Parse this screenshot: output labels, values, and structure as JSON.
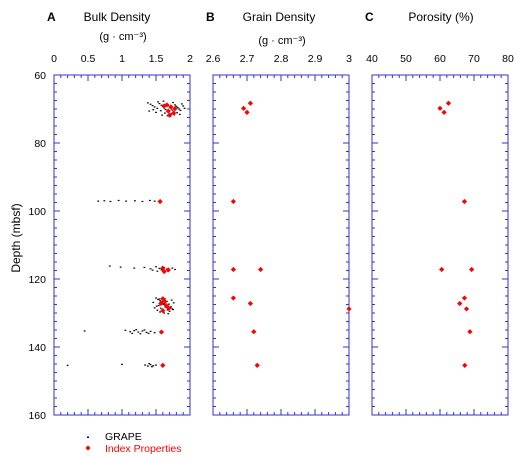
{
  "colors": {
    "axis": "#3333cc",
    "grape": "#000000",
    "index": "#ff0000",
    "text": "#000000"
  },
  "panels": [
    {
      "letter": "A",
      "title": "Bulk Density",
      "unit": "(g · cm⁻³)"
    },
    {
      "letter": "B",
      "title": "Grain Density",
      "unit": "(g · cm⁻³)"
    },
    {
      "letter": "C",
      "title": "Porosity (%)",
      "unit": ""
    }
  ],
  "legend": [
    {
      "label": "GRAPE",
      "color": "#000000",
      "marker": "dot"
    },
    {
      "label": "Index Properties",
      "color": "#ff0000",
      "marker": "diamond"
    }
  ],
  "chart_data": [
    {
      "type": "scatter",
      "title": "Bulk Density",
      "xlabel": "(g · cm⁻³)",
      "ylabel": "Depth (mbsf)",
      "xlim": [
        0,
        2
      ],
      "ylim": [
        60,
        160
      ],
      "y_inverted": true,
      "x_ticks": [
        "0",
        "0.5",
        "1",
        "1.5",
        "2"
      ],
      "x_tick_values": [
        0,
        0.5,
        1,
        1.5,
        2
      ],
      "y_ticks": [
        "60",
        "80",
        "100",
        "120",
        "140",
        "160"
      ],
      "y_tick_values": [
        60,
        80,
        100,
        120,
        140,
        160
      ],
      "series": [
        {
          "name": "GRAPE",
          "points": [
            [
              1.38,
              68.2
            ],
            [
              1.42,
              68.6
            ],
            [
              1.45,
              69.0
            ],
            [
              1.48,
              69.4
            ],
            [
              1.52,
              69.8
            ],
            [
              1.55,
              68.4
            ],
            [
              1.58,
              68.9
            ],
            [
              1.6,
              69.3
            ],
            [
              1.62,
              69.7
            ],
            [
              1.64,
              70.1
            ],
            [
              1.66,
              68.6
            ],
            [
              1.68,
              69.0
            ],
            [
              1.7,
              69.5
            ],
            [
              1.72,
              69.9
            ],
            [
              1.74,
              70.3
            ],
            [
              1.76,
              70.7
            ],
            [
              1.78,
              68.8
            ],
            [
              1.8,
              69.2
            ],
            [
              1.82,
              69.6
            ],
            [
              1.84,
              70.0
            ],
            [
              1.86,
              70.4
            ],
            [
              1.88,
              68.5
            ],
            [
              1.9,
              69.1
            ],
            [
              1.92,
              69.8
            ],
            [
              1.4,
              70.6
            ],
            [
              1.46,
              70.2
            ],
            [
              1.5,
              71.0
            ],
            [
              1.57,
              70.5
            ],
            [
              1.63,
              71.2
            ],
            [
              1.69,
              70.8
            ],
            [
              1.73,
              71.4
            ],
            [
              1.77,
              71.7
            ],
            [
              1.81,
              71.1
            ],
            [
              1.85,
              71.6
            ],
            [
              1.59,
              71.8
            ],
            [
              1.67,
              72.0
            ],
            [
              1.71,
              72.2
            ],
            [
              1.53,
              67.9
            ],
            [
              1.61,
              67.7
            ],
            [
              1.75,
              68.1
            ],
            [
              0.65,
              97.1
            ],
            [
              0.74,
              97.0
            ],
            [
              0.83,
              97.2
            ],
            [
              0.95,
              96.9
            ],
            [
              1.06,
              97.1
            ],
            [
              1.19,
              97.0
            ],
            [
              1.3,
              97.2
            ],
            [
              1.41,
              96.9
            ],
            [
              1.48,
              97.1
            ],
            [
              0.82,
              116.2
            ],
            [
              0.98,
              116.5
            ],
            [
              1.18,
              116.8
            ],
            [
              1.33,
              116.6
            ],
            [
              1.42,
              117.0
            ],
            [
              1.5,
              116.4
            ],
            [
              1.55,
              116.9
            ],
            [
              1.58,
              117.3
            ],
            [
              1.62,
              116.7
            ],
            [
              1.66,
              117.1
            ],
            [
              1.7,
              117.4
            ],
            [
              1.74,
              116.8
            ],
            [
              1.78,
              117.2
            ],
            [
              1.6,
              117.6
            ],
            [
              1.68,
              117.8
            ],
            [
              1.52,
              117.7
            ],
            [
              1.45,
              117.4
            ],
            [
              1.5,
              125.6
            ],
            [
              1.53,
              126.0
            ],
            [
              1.56,
              126.4
            ],
            [
              1.59,
              126.8
            ],
            [
              1.62,
              127.2
            ],
            [
              1.65,
              127.6
            ],
            [
              1.68,
              128.0
            ],
            [
              1.71,
              128.4
            ],
            [
              1.74,
              128.8
            ],
            [
              1.52,
              129.2
            ],
            [
              1.55,
              125.9
            ],
            [
              1.58,
              126.7
            ],
            [
              1.61,
              127.5
            ],
            [
              1.64,
              128.3
            ],
            [
              1.67,
              129.1
            ],
            [
              1.7,
              129.5
            ],
            [
              1.73,
              126.2
            ],
            [
              1.76,
              127.0
            ],
            [
              1.54,
              127.8
            ],
            [
              1.57,
              128.6
            ],
            [
              1.6,
              129.4
            ],
            [
              1.63,
              125.8
            ],
            [
              1.66,
              126.6
            ],
            [
              1.69,
              127.4
            ],
            [
              1.72,
              128.2
            ],
            [
              1.75,
              129.0
            ],
            [
              1.51,
              128.0
            ],
            [
              1.56,
              129.7
            ],
            [
              1.62,
              130.0
            ],
            [
              1.68,
              130.2
            ],
            [
              1.46,
              126.9
            ],
            [
              1.48,
              128.5
            ],
            [
              0.45,
              135.3
            ],
            [
              1.05,
              135.1
            ],
            [
              1.12,
              135.5
            ],
            [
              1.18,
              135.2
            ],
            [
              1.24,
              135.6
            ],
            [
              1.3,
              135.3
            ],
            [
              1.36,
              135.7
            ],
            [
              1.42,
              135.4
            ],
            [
              1.48,
              135.8
            ],
            [
              1.15,
              136.0
            ],
            [
              1.27,
              136.1
            ],
            [
              1.39,
              136.0
            ],
            [
              1.21,
              134.9
            ],
            [
              1.33,
              135.0
            ],
            [
              0.2,
              145.4
            ],
            [
              1.0,
              145.1
            ],
            [
              1.34,
              145.3
            ],
            [
              1.38,
              145.6
            ],
            [
              1.42,
              145.2
            ],
            [
              1.46,
              145.5
            ],
            [
              1.5,
              145.3
            ],
            [
              1.44,
              145.8
            ],
            [
              1.4,
              144.9
            ]
          ]
        },
        {
          "name": "Index Properties",
          "points": [
            [
              1.66,
              68.8
            ],
            [
              1.72,
              69.4
            ],
            [
              1.78,
              69.9
            ],
            [
              1.68,
              70.6
            ],
            [
              1.76,
              71.2
            ],
            [
              1.7,
              71.8
            ],
            [
              1.62,
              69.1
            ],
            [
              1.56,
              97.2
            ],
            [
              1.6,
              116.8
            ],
            [
              1.68,
              117.3
            ],
            [
              1.62,
              117.8
            ],
            [
              1.6,
              125.8
            ],
            [
              1.63,
              126.6
            ],
            [
              1.57,
              127.2
            ],
            [
              1.65,
              127.8
            ],
            [
              1.69,
              128.6
            ],
            [
              1.6,
              129.3
            ],
            [
              1.66,
              128.0
            ],
            [
              1.58,
              135.6
            ],
            [
              1.6,
              145.4
            ]
          ]
        }
      ]
    },
    {
      "type": "scatter",
      "title": "Grain Density",
      "xlabel": "(g · cm⁻³)",
      "ylabel": "",
      "xlim": [
        2.6,
        3
      ],
      "ylim": [
        60,
        160
      ],
      "y_inverted": true,
      "x_ticks": [
        "2.6",
        "2.7",
        "2.8",
        "2.9",
        "3"
      ],
      "x_tick_values": [
        2.6,
        2.7,
        2.8,
        2.9,
        3
      ],
      "series": [
        {
          "name": "Index Properties",
          "points": [
            [
              2.71,
              68.3
            ],
            [
              2.69,
              69.8
            ],
            [
              2.7,
              71.0
            ],
            [
              2.66,
              97.2
            ],
            [
              2.66,
              117.2
            ],
            [
              2.74,
              117.2
            ],
            [
              2.66,
              125.6
            ],
            [
              2.71,
              127.2
            ],
            [
              3.0,
              128.8
            ],
            [
              2.72,
              135.5
            ],
            [
              2.73,
              145.4
            ]
          ]
        }
      ]
    },
    {
      "type": "scatter",
      "title": "Porosity (%)",
      "xlabel": "",
      "ylabel": "",
      "xlim": [
        40,
        80
      ],
      "ylim": [
        60,
        160
      ],
      "y_inverted": true,
      "x_ticks": [
        "40",
        "50",
        "60",
        "70",
        "80"
      ],
      "x_tick_values": [
        40,
        50,
        60,
        70,
        80
      ],
      "series": [
        {
          "name": "Index Properties",
          "points": [
            [
              62.5,
              68.3
            ],
            [
              60.0,
              69.8
            ],
            [
              61.2,
              71.0
            ],
            [
              67.2,
              97.2
            ],
            [
              60.5,
              117.2
            ],
            [
              69.3,
              117.2
            ],
            [
              67.2,
              125.6
            ],
            [
              65.8,
              127.2
            ],
            [
              67.8,
              128.8
            ],
            [
              68.8,
              135.5
            ],
            [
              67.3,
              145.4
            ]
          ]
        }
      ]
    }
  ]
}
